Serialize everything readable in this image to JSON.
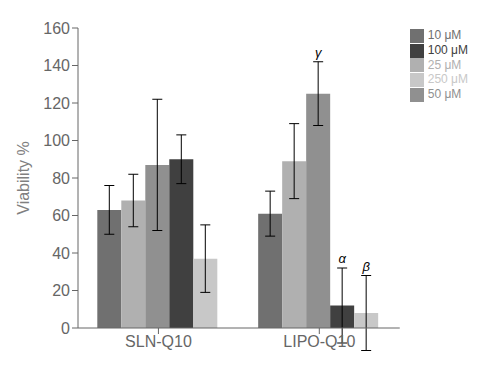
{
  "chart_data": {
    "type": "bar",
    "categories": [
      "SLN-Q10",
      "LIPO-Q10"
    ],
    "series": [
      {
        "name": "10 μM",
        "color": "#707070",
        "values": [
          63,
          61
        ],
        "errors": [
          13,
          12
        ]
      },
      {
        "name": "25 μM",
        "color": "#b0b0b0",
        "values": [
          68,
          89
        ],
        "errors": [
          14,
          20
        ]
      },
      {
        "name": "50 μM",
        "color": "#909090",
        "values": [
          87,
          125
        ],
        "errors": [
          35,
          17
        ]
      },
      {
        "name": "100 μM",
        "color": "#404040",
        "values": [
          90,
          12
        ],
        "errors": [
          13,
          20
        ]
      },
      {
        "name": "250 μM",
        "color": "#c8c8c8",
        "values": [
          37,
          8
        ],
        "errors": [
          18,
          20
        ]
      }
    ],
    "ylabel": "Viability %",
    "ylim": [
      0,
      160
    ],
    "yticks": [
      0,
      20,
      40,
      60,
      80,
      100,
      120,
      140,
      160
    ],
    "annotations": [
      {
        "text": "γ",
        "category": "LIPO-Q10",
        "series": "50 μM"
      },
      {
        "text": "α",
        "category": "LIPO-Q10",
        "series": "100 μM"
      },
      {
        "text": "β",
        "category": "LIPO-Q10",
        "series": "250 μM"
      }
    ],
    "legend": "upper right",
    "grid": false
  }
}
